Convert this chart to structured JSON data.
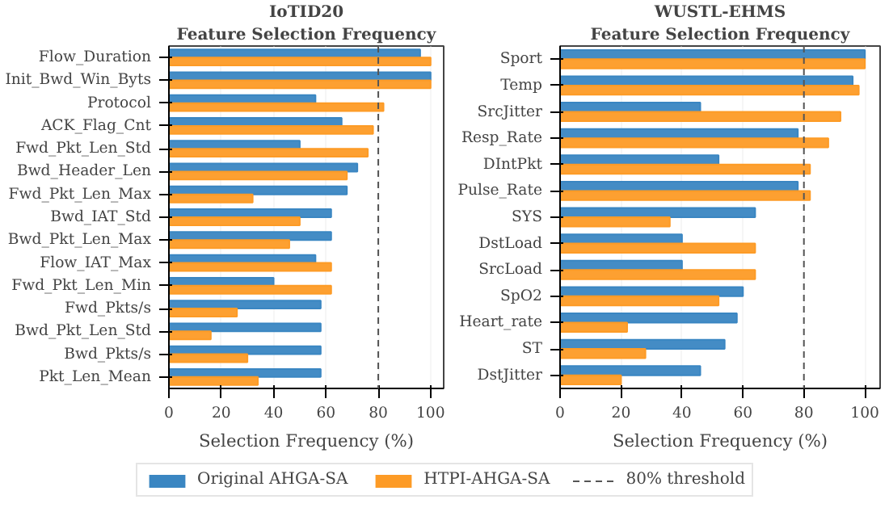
{
  "chart_data": [
    {
      "type": "bar",
      "orientation": "horizontal",
      "title": "IoTID20",
      "subtitle": "Feature Selection Frequency",
      "xlabel": "Selection Frequency (%)",
      "categories": [
        "Flow_Duration",
        "Init_Bwd_Win_Byts",
        "Protocol",
        "ACK_Flag_Cnt",
        "Fwd_Pkt_Len_Std",
        "Bwd_Header_Len",
        "Fwd_Pkt_Len_Max",
        "Bwd_IAT_Std",
        "Bwd_Pkt_Len_Max",
        "Flow_IAT_Max",
        "Fwd_Pkt_Len_Min",
        "Fwd_Pkts/s",
        "Bwd_Pkt_Len_Std",
        "Bwd_Pkts/s",
        "Pkt_Len_Mean"
      ],
      "series": [
        {
          "name": "Original AHGA-SA",
          "color": "#3a86c2",
          "values": [
            96,
            100,
            56,
            66,
            50,
            72,
            68,
            62,
            62,
            56,
            40,
            58,
            58,
            58,
            58
          ]
        },
        {
          "name": "HTPI-AHGA-SA",
          "color": "#fd9b26",
          "values": [
            100,
            100,
            82,
            78,
            76,
            68,
            32,
            50,
            46,
            62,
            62,
            26,
            16,
            30,
            34
          ]
        }
      ],
      "xlim": [
        0,
        105
      ],
      "xticks": [
        0,
        20,
        40,
        60,
        80,
        100
      ],
      "grid": "x",
      "legend": "bottom",
      "ref_lines": [
        {
          "axis": "x",
          "value": 80,
          "label": "80% threshold",
          "color": "#555555",
          "line_style": "dashed"
        }
      ]
    },
    {
      "type": "bar",
      "orientation": "horizontal",
      "title": "WUSTL-EHMS",
      "subtitle": "Feature Selection Frequency",
      "xlabel": "Selection Frequency (%)",
      "categories": [
        "Sport",
        "Temp",
        "SrcJitter",
        "Resp_Rate",
        "DIntPkt",
        "Pulse_Rate",
        "SYS",
        "DstLoad",
        "SrcLoad",
        "SpO2",
        "Heart_rate",
        "ST",
        "DstJitter"
      ],
      "series": [
        {
          "color": "#3a86c2",
          "values": [
            100,
            96,
            46,
            78,
            52,
            78,
            64,
            40,
            40,
            60,
            58,
            54,
            46
          ]
        },
        {
          "color": "#fd9b26",
          "values": [
            100,
            98,
            92,
            88,
            82,
            82,
            36,
            64,
            64,
            52,
            22,
            28,
            20
          ]
        }
      ],
      "xlim": [
        0,
        105
      ],
      "xticks": [
        0,
        20,
        40,
        60,
        80,
        100
      ],
      "grid": "x",
      "ref_lines": [
        {
          "axis": "x",
          "value": 80,
          "color": "#555555",
          "line_style": "dashed"
        }
      ]
    }
  ]
}
